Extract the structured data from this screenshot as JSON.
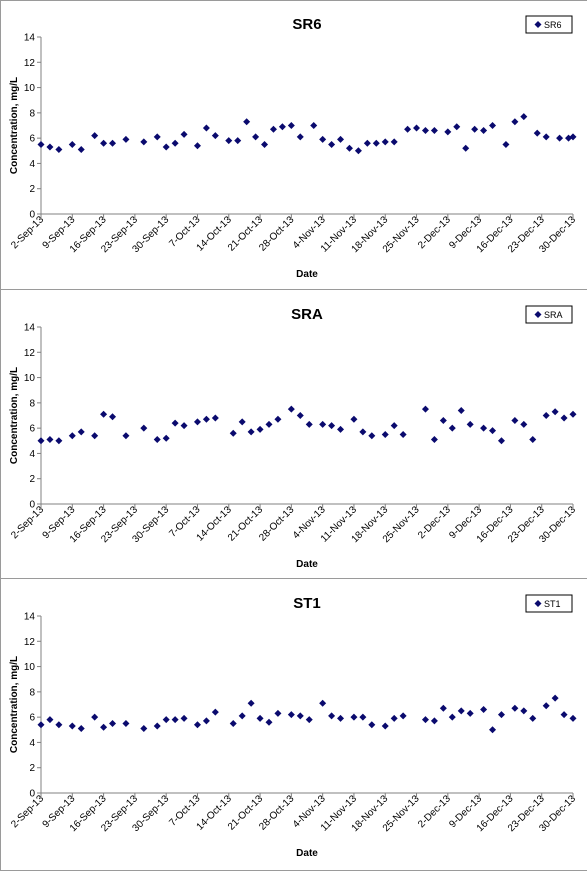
{
  "x_tick_labels": [
    "2-Sep-13",
    "9-Sep-13",
    "16-Sep-13",
    "23-Sep-13",
    "30-Sep-13",
    "7-Oct-13",
    "14-Oct-13",
    "21-Oct-13",
    "28-Oct-13",
    "4-Nov-13",
    "11-Nov-13",
    "18-Nov-13",
    "25-Nov-13",
    "2-Dec-13",
    "9-Dec-13",
    "16-Dec-13",
    "23-Dec-13",
    "30-Dec-13"
  ],
  "marker_color": "#0a0a6e",
  "chart_data": [
    {
      "type": "scatter",
      "title": "SR6",
      "xlabel": "Date",
      "ylabel": "Concentration, mg/L",
      "ylim": [
        0,
        14
      ],
      "yticks": [
        0,
        2,
        4,
        6,
        8,
        10,
        12,
        14
      ],
      "xlim": [
        "2-Sep-13",
        "30-Dec-13"
      ],
      "grid": false,
      "legend": "top-right",
      "series": [
        {
          "name": "SR6",
          "x": [
            "2-Sep-13",
            "4-Sep-13",
            "6-Sep-13",
            "9-Sep-13",
            "11-Sep-13",
            "14-Sep-13",
            "16-Sep-13",
            "18-Sep-13",
            "21-Sep-13",
            "25-Sep-13",
            "28-Sep-13",
            "30-Sep-13",
            "2-Oct-13",
            "4-Oct-13",
            "7-Oct-13",
            "9-Oct-13",
            "11-Oct-13",
            "14-Oct-13",
            "16-Oct-13",
            "18-Oct-13",
            "20-Oct-13",
            "22-Oct-13",
            "24-Oct-13",
            "26-Oct-13",
            "28-Oct-13",
            "30-Oct-13",
            "2-Nov-13",
            "4-Nov-13",
            "6-Nov-13",
            "8-Nov-13",
            "10-Nov-13",
            "12-Nov-13",
            "14-Nov-13",
            "16-Nov-13",
            "18-Nov-13",
            "20-Nov-13",
            "23-Nov-13",
            "25-Nov-13",
            "27-Nov-13",
            "29-Nov-13",
            "2-Dec-13",
            "4-Dec-13",
            "6-Dec-13",
            "8-Dec-13",
            "10-Dec-13",
            "12-Dec-13",
            "15-Dec-13",
            "17-Dec-13",
            "19-Dec-13",
            "22-Dec-13",
            "24-Dec-13",
            "27-Dec-13",
            "29-Dec-13",
            "30-Dec-13"
          ],
          "y": [
            5.5,
            5.3,
            5.1,
            5.5,
            5.1,
            6.2,
            5.6,
            5.6,
            5.9,
            5.7,
            6.1,
            5.3,
            5.6,
            6.3,
            5.4,
            6.8,
            6.2,
            5.8,
            5.8,
            7.3,
            6.1,
            5.5,
            6.7,
            6.9,
            7.0,
            6.1,
            7.0,
            5.9,
            5.5,
            5.9,
            5.2,
            5.0,
            5.6,
            5.6,
            5.7,
            5.7,
            6.7,
            6.8,
            6.6,
            6.6,
            6.5,
            6.9,
            5.2,
            6.7,
            6.6,
            7.0,
            5.5,
            7.3,
            7.7,
            6.4,
            6.1,
            6.0,
            6.0,
            6.1
          ]
        }
      ]
    },
    {
      "type": "scatter",
      "title": "SRA",
      "xlabel": "Date",
      "ylabel": "Concentration, mg/L",
      "ylim": [
        0,
        14
      ],
      "yticks": [
        0,
        2,
        4,
        6,
        8,
        10,
        12,
        14
      ],
      "xlim": [
        "2-Sep-13",
        "30-Dec-13"
      ],
      "grid": false,
      "legend": "top-right",
      "series": [
        {
          "name": "SRA",
          "x": [
            "2-Sep-13",
            "4-Sep-13",
            "6-Sep-13",
            "9-Sep-13",
            "11-Sep-13",
            "14-Sep-13",
            "16-Sep-13",
            "18-Sep-13",
            "21-Sep-13",
            "25-Sep-13",
            "28-Sep-13",
            "30-Sep-13",
            "2-Oct-13",
            "4-Oct-13",
            "7-Oct-13",
            "9-Oct-13",
            "11-Oct-13",
            "15-Oct-13",
            "17-Oct-13",
            "19-Oct-13",
            "21-Oct-13",
            "23-Oct-13",
            "25-Oct-13",
            "28-Oct-13",
            "30-Oct-13",
            "1-Nov-13",
            "4-Nov-13",
            "6-Nov-13",
            "8-Nov-13",
            "11-Nov-13",
            "13-Nov-13",
            "15-Nov-13",
            "18-Nov-13",
            "20-Nov-13",
            "22-Nov-13",
            "27-Nov-13",
            "29-Nov-13",
            "1-Dec-13",
            "3-Dec-13",
            "5-Dec-13",
            "7-Dec-13",
            "10-Dec-13",
            "12-Dec-13",
            "14-Dec-13",
            "17-Dec-13",
            "19-Dec-13",
            "21-Dec-13",
            "24-Dec-13",
            "26-Dec-13",
            "28-Dec-13",
            "30-Dec-13"
          ],
          "y": [
            5.0,
            5.1,
            5.0,
            5.4,
            5.7,
            5.4,
            7.1,
            6.9,
            5.4,
            6.0,
            5.1,
            5.2,
            6.4,
            6.2,
            6.5,
            6.7,
            6.8,
            5.6,
            6.5,
            5.7,
            5.9,
            6.3,
            6.7,
            7.5,
            7.0,
            6.3,
            6.3,
            6.2,
            5.9,
            6.7,
            5.7,
            5.4,
            5.5,
            6.2,
            5.5,
            7.5,
            5.1,
            6.6,
            6.0,
            7.4,
            6.3,
            6.0,
            5.8,
            5.0,
            6.6,
            6.3,
            5.1,
            7.0,
            7.3,
            6.8,
            7.1
          ]
        }
      ]
    },
    {
      "type": "scatter",
      "title": "ST1",
      "xlabel": "Date",
      "ylabel": "Concentration, mg/L",
      "ylim": [
        0,
        14
      ],
      "yticks": [
        0,
        2,
        4,
        6,
        8,
        10,
        12,
        14
      ],
      "xlim": [
        "2-Sep-13",
        "30-Dec-13"
      ],
      "grid": false,
      "legend": "top-right",
      "series": [
        {
          "name": "ST1",
          "x": [
            "2-Sep-13",
            "4-Sep-13",
            "6-Sep-13",
            "9-Sep-13",
            "11-Sep-13",
            "14-Sep-13",
            "16-Sep-13",
            "18-Sep-13",
            "21-Sep-13",
            "25-Sep-13",
            "28-Sep-13",
            "30-Sep-13",
            "2-Oct-13",
            "4-Oct-13",
            "7-Oct-13",
            "9-Oct-13",
            "11-Oct-13",
            "15-Oct-13",
            "17-Oct-13",
            "19-Oct-13",
            "21-Oct-13",
            "23-Oct-13",
            "25-Oct-13",
            "28-Oct-13",
            "30-Oct-13",
            "1-Nov-13",
            "4-Nov-13",
            "6-Nov-13",
            "8-Nov-13",
            "11-Nov-13",
            "13-Nov-13",
            "15-Nov-13",
            "18-Nov-13",
            "20-Nov-13",
            "22-Nov-13",
            "27-Nov-13",
            "29-Nov-13",
            "1-Dec-13",
            "3-Dec-13",
            "5-Dec-13",
            "7-Dec-13",
            "10-Dec-13",
            "12-Dec-13",
            "14-Dec-13",
            "17-Dec-13",
            "19-Dec-13",
            "21-Dec-13",
            "24-Dec-13",
            "26-Dec-13",
            "28-Dec-13",
            "30-Dec-13"
          ],
          "y": [
            5.4,
            5.8,
            5.4,
            5.3,
            5.1,
            6.0,
            5.2,
            5.5,
            5.5,
            5.1,
            5.3,
            5.8,
            5.8,
            5.9,
            5.4,
            5.7,
            6.4,
            5.5,
            6.1,
            7.1,
            5.9,
            5.6,
            6.3,
            6.2,
            6.1,
            5.8,
            7.1,
            6.1,
            5.9,
            6.0,
            6.0,
            5.4,
            5.3,
            5.9,
            6.1,
            5.8,
            5.7,
            6.7,
            6.0,
            6.5,
            6.3,
            6.6,
            5.0,
            6.2,
            6.7,
            6.5,
            5.9,
            6.9,
            7.5,
            6.2,
            5.9
          ]
        }
      ]
    }
  ]
}
